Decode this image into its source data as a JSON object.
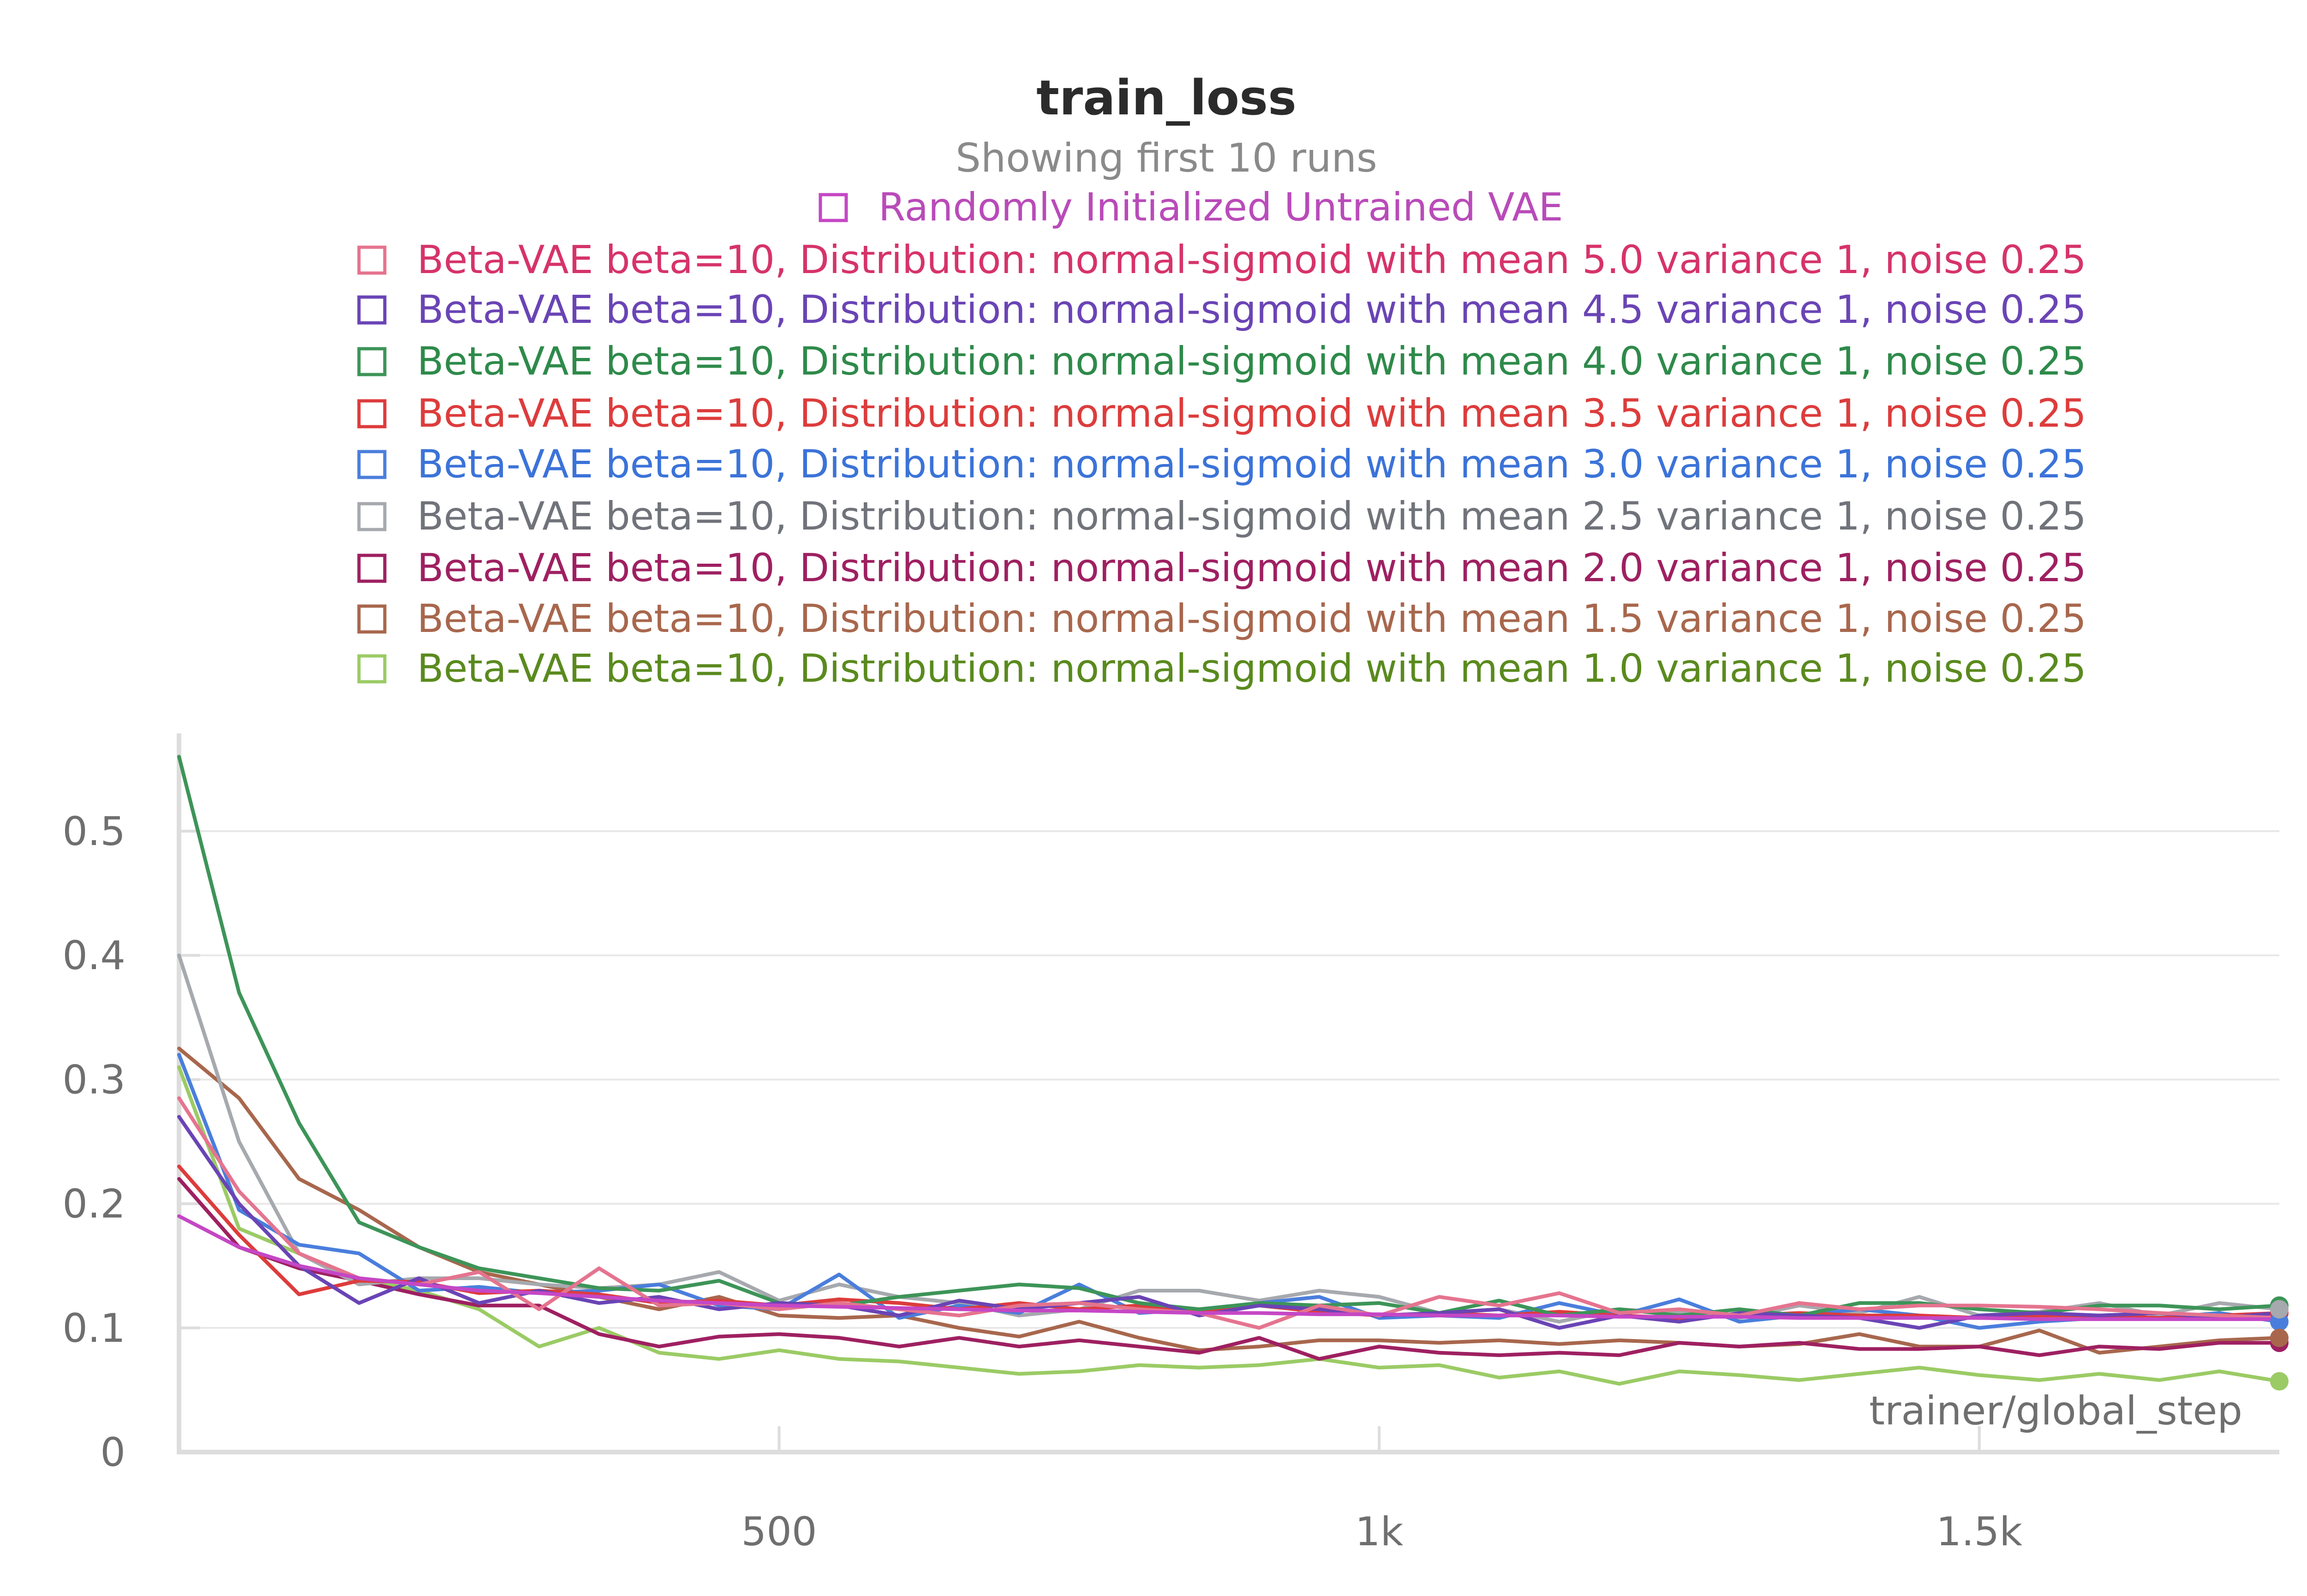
{
  "chart_data": {
    "type": "line",
    "title": "train_loss",
    "subtitle": "Showing first 10 runs",
    "xlabel": "trainer/global_step",
    "ylabel": "",
    "xlim": [
      0,
      1750
    ],
    "ylim": [
      0,
      0.575
    ],
    "x_ticks": [
      500,
      1000,
      1500
    ],
    "x_tick_labels": [
      "500",
      "1k",
      "1.5k"
    ],
    "y_ticks": [
      0,
      0.1,
      0.2,
      0.3,
      0.4,
      0.5
    ],
    "y_tick_labels": [
      "0",
      "0.1",
      "0.2",
      "0.3",
      "0.4",
      "0.5"
    ],
    "grid": true,
    "legend_position": "top",
    "x": [
      0,
      50,
      100,
      150,
      200,
      250,
      300,
      350,
      400,
      450,
      500,
      550,
      600,
      650,
      700,
      750,
      800,
      850,
      900,
      950,
      1000,
      1050,
      1100,
      1150,
      1200,
      1250,
      1300,
      1350,
      1400,
      1450,
      1500,
      1550,
      1600,
      1650,
      1700,
      1750
    ],
    "series": [
      {
        "name": "Randomly Initialized Untrained VAE",
        "color": "#C547C5",
        "label_color": "#B94BB9",
        "values": [
          0.19,
          0.165,
          0.15,
          0.14,
          0.135,
          0.13,
          0.128,
          0.125,
          0.122,
          0.12,
          0.118,
          0.117,
          0.116,
          0.115,
          0.114,
          0.114,
          0.113,
          0.112,
          0.112,
          0.111,
          0.111,
          0.11,
          0.11,
          0.11,
          0.109,
          0.109,
          0.109,
          0.108,
          0.108,
          0.108,
          0.108,
          0.107,
          0.107,
          0.107,
          0.107,
          0.107
        ]
      },
      {
        "name": "Beta-VAE beta=10, Distribution: normal-sigmoid with mean 5.0 variance 1, noise 0.25",
        "color": "#E5748F",
        "label_color": "#D6336B",
        "values": [
          0.285,
          0.21,
          0.16,
          0.14,
          0.135,
          0.145,
          0.115,
          0.148,
          0.118,
          0.12,
          0.115,
          0.12,
          0.115,
          0.11,
          0.118,
          0.12,
          0.115,
          0.112,
          0.1,
          0.118,
          0.11,
          0.125,
          0.118,
          0.128,
          0.112,
          0.115,
          0.11,
          0.12,
          0.115,
          0.118,
          0.118,
          0.117,
          0.115,
          0.112,
          0.11,
          0.108
        ]
      },
      {
        "name": "Beta-VAE beta=10, Distribution: normal-sigmoid with mean 4.5 variance 1, noise 0.25",
        "color": "#6A44B5",
        "label_color": "#6A44B5",
        "values": [
          0.27,
          0.2,
          0.15,
          0.12,
          0.14,
          0.12,
          0.13,
          0.12,
          0.125,
          0.115,
          0.12,
          0.118,
          0.11,
          0.122,
          0.115,
          0.12,
          0.125,
          0.11,
          0.118,
          0.115,
          0.11,
          0.112,
          0.115,
          0.1,
          0.11,
          0.105,
          0.112,
          0.11,
          0.108,
          0.1,
          0.11,
          0.112,
          0.11,
          0.112,
          0.108,
          0.112
        ]
      },
      {
        "name": "Beta-VAE beta=10, Distribution: normal-sigmoid with mean 4.0 variance 1, noise 0.25",
        "color": "#3D9458",
        "label_color": "#2E8A4A",
        "values": [
          0.56,
          0.37,
          0.265,
          0.185,
          0.165,
          0.148,
          0.14,
          0.132,
          0.13,
          0.138,
          0.12,
          0.118,
          0.125,
          0.13,
          0.135,
          0.132,
          0.12,
          0.115,
          0.12,
          0.118,
          0.12,
          0.112,
          0.122,
          0.11,
          0.115,
          0.11,
          0.115,
          0.11,
          0.12,
          0.12,
          0.115,
          0.112,
          0.118,
          0.118,
          0.115,
          0.118
        ]
      },
      {
        "name": "Beta-VAE beta=10, Distribution: normal-sigmoid with mean 3.5 variance 1, noise 0.25",
        "color": "#DD3C3C",
        "label_color": "#DD3C3C",
        "values": [
          0.23,
          0.175,
          0.127,
          0.138,
          0.137,
          0.128,
          0.13,
          0.127,
          0.12,
          0.122,
          0.118,
          0.123,
          0.12,
          0.115,
          0.12,
          0.115,
          0.118,
          0.112,
          0.118,
          0.113,
          0.11,
          0.112,
          0.11,
          0.113,
          0.11,
          0.108,
          0.11,
          0.112,
          0.11,
          0.11,
          0.108,
          0.11,
          0.11,
          0.108,
          0.11,
          0.112
        ]
      },
      {
        "name": "Beta-VAE beta=10, Distribution: normal-sigmoid with mean 3.0 variance 1, noise 0.25",
        "color": "#4A7EDC",
        "label_color": "#3B73D8",
        "values": [
          0.32,
          0.195,
          0.167,
          0.16,
          0.13,
          0.133,
          0.128,
          0.13,
          0.135,
          0.118,
          0.115,
          0.143,
          0.108,
          0.118,
          0.112,
          0.135,
          0.112,
          0.115,
          0.12,
          0.125,
          0.108,
          0.11,
          0.108,
          0.12,
          0.11,
          0.123,
          0.105,
          0.11,
          0.115,
          0.11,
          0.1,
          0.105,
          0.108,
          0.108,
          0.112,
          0.105
        ]
      },
      {
        "name": "Beta-VAE beta=10, Distribution: normal-sigmoid with mean 2.5 variance 1, noise 0.25",
        "color": "#A6A9AE",
        "label_color": "#70737A",
        "values": [
          0.4,
          0.25,
          0.16,
          0.135,
          0.14,
          0.14,
          0.135,
          0.132,
          0.135,
          0.145,
          0.122,
          0.135,
          0.125,
          0.12,
          0.11,
          0.115,
          0.13,
          0.13,
          0.122,
          0.13,
          0.125,
          0.112,
          0.115,
          0.105,
          0.115,
          0.112,
          0.108,
          0.118,
          0.112,
          0.125,
          0.11,
          0.113,
          0.12,
          0.11,
          0.12,
          0.115
        ]
      },
      {
        "name": "Beta-VAE beta=10, Distribution: normal-sigmoid with mean 2.0 variance 1, noise 0.25",
        "color": "#9E2061",
        "label_color": "#9E2061",
        "values": [
          0.22,
          0.165,
          0.148,
          0.138,
          0.127,
          0.118,
          0.118,
          0.095,
          0.085,
          0.093,
          0.095,
          0.092,
          0.085,
          0.092,
          0.085,
          0.09,
          0.085,
          0.08,
          0.092,
          0.075,
          0.085,
          0.08,
          0.078,
          0.08,
          0.078,
          0.088,
          0.085,
          0.088,
          0.083,
          0.083,
          0.085,
          0.078,
          0.085,
          0.083,
          0.088,
          0.088
        ]
      },
      {
        "name": "Beta-VAE beta=10, Distribution: normal-sigmoid with mean 1.5 variance 1, noise 0.25",
        "color": "#A8674D",
        "label_color": "#A8674D",
        "values": [
          0.325,
          0.285,
          0.22,
          0.195,
          0.165,
          0.145,
          0.135,
          0.125,
          0.115,
          0.125,
          0.11,
          0.108,
          0.11,
          0.1,
          0.093,
          0.105,
          0.092,
          0.082,
          0.085,
          0.09,
          0.09,
          0.088,
          0.09,
          0.087,
          0.09,
          0.088,
          0.085,
          0.087,
          0.095,
          0.085,
          0.085,
          0.098,
          0.08,
          0.085,
          0.09,
          0.092
        ]
      },
      {
        "name": "Beta-VAE beta=10, Distribution: normal-sigmoid with mean 1.0 variance 1, noise 0.25",
        "color": "#9BCB65",
        "label_color": "#5A8A1E",
        "values": [
          0.31,
          0.18,
          0.16,
          0.14,
          0.13,
          0.115,
          0.085,
          0.1,
          0.08,
          0.075,
          0.082,
          0.075,
          0.073,
          0.068,
          0.063,
          0.065,
          0.07,
          0.068,
          0.07,
          0.075,
          0.068,
          0.07,
          0.06,
          0.065,
          0.055,
          0.065,
          0.062,
          0.058,
          0.063,
          0.068,
          0.062,
          0.058,
          0.063,
          0.058,
          0.065,
          0.057
        ]
      }
    ]
  }
}
